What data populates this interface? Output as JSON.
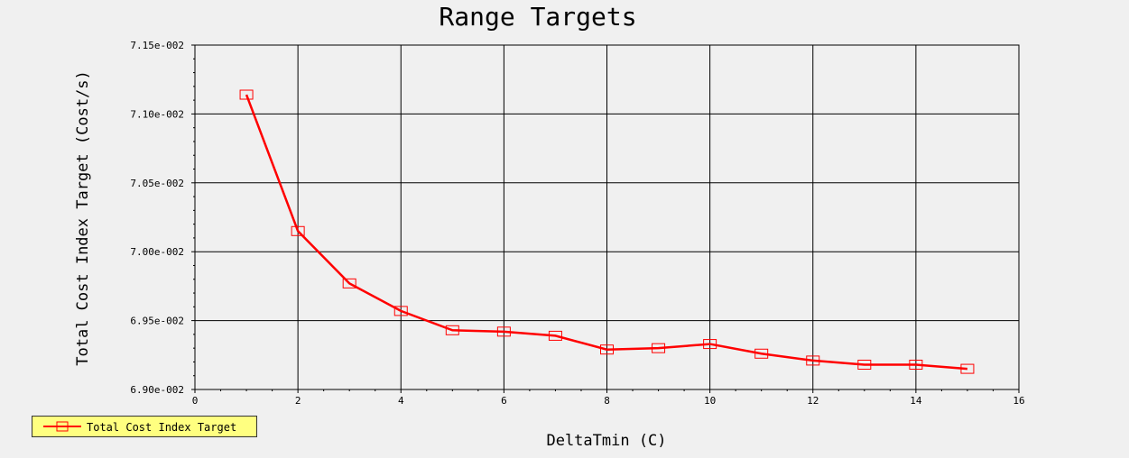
{
  "chart_data": {
    "type": "line",
    "title": "Range Targets",
    "xlabel": "DeltaTmin (C)",
    "ylabel": "Total Cost Index Target (Cost/s)",
    "xlim": [
      0,
      16
    ],
    "ylim": [
      0.069,
      0.0715
    ],
    "x_ticks": [
      0,
      2,
      4,
      6,
      8,
      10,
      12,
      14,
      16
    ],
    "x_tick_labels": [
      "0",
      "2",
      "4",
      "6",
      "8",
      "10",
      "12",
      "14",
      "16"
    ],
    "y_ticks": [
      0.069,
      0.0695,
      0.07,
      0.0705,
      0.071,
      0.0715
    ],
    "y_tick_labels": [
      "6.90e-002",
      "6.95e-002",
      "7.00e-002",
      "7.05e-002",
      "7.10e-002",
      "7.15e-002"
    ],
    "grid": true,
    "legend_position": "bottom-left",
    "series": [
      {
        "name": "Total Cost Index Target",
        "color": "#ff0000",
        "marker": "square",
        "x": [
          1,
          2,
          3,
          4,
          5,
          6,
          7,
          8,
          9,
          10,
          11,
          12,
          13,
          14,
          15
        ],
        "values": [
          0.07114,
          0.07015,
          0.06977,
          0.06957,
          0.06943,
          0.06942,
          0.06939,
          0.06929,
          0.0693,
          0.06933,
          0.06926,
          0.06921,
          0.06918,
          0.06918,
          0.06915
        ]
      }
    ],
    "colors": {
      "background": "#f0f0f0",
      "plot_area": "#f0f0f0",
      "grid": "#000000",
      "legend_bg": "#ffff80"
    }
  }
}
